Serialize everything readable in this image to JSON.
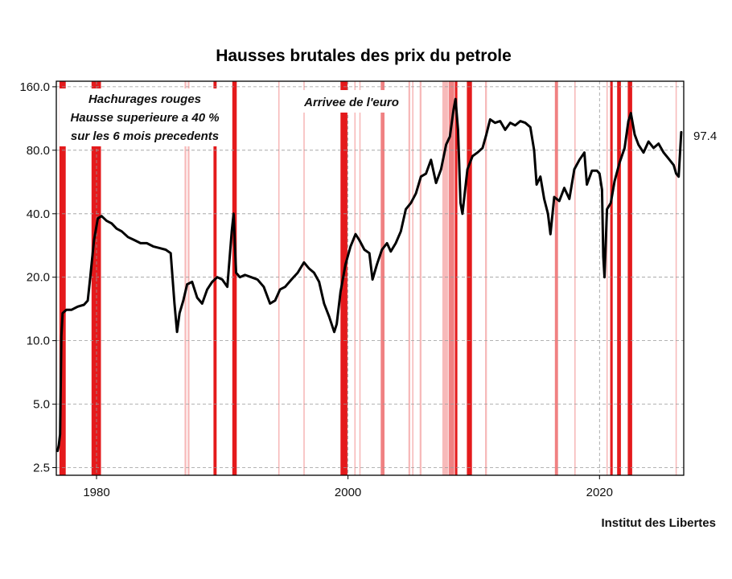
{
  "chart_data": {
    "type": "line",
    "title": "Hausses brutales des prix du petrole",
    "xlabel": "",
    "ylabel": "",
    "y_scale": "log",
    "ylim": [
      2.3,
      170
    ],
    "xlim": [
      1976.8,
      2026.7
    ],
    "grid": true,
    "x_ticks": [
      1980,
      2000,
      2020
    ],
    "x_tick_labels": [
      "1980",
      "2000",
      "2020"
    ],
    "y_ticks": [
      2.5,
      5.0,
      10.0,
      20.0,
      40.0,
      80.0,
      160.0
    ],
    "y_tick_labels": [
      "2.5",
      "5.0",
      "10.0",
      "20.0",
      "40.0",
      "80.0",
      "160.0"
    ],
    "line_color": "#000000",
    "shade_color": "#e41a1c",
    "end_label": "97.4",
    "annotations": {
      "shading_note": [
        "Hachurages rouges",
        "Hausse superieure a 40 %",
        "sur les 6 mois precedents"
      ],
      "euro_note": "Arrivee de l'euro"
    },
    "credit": "Institut des Libertes",
    "shaded_periods": [
      {
        "start": 1977.05,
        "end": 1977.55,
        "strength": "strong"
      },
      {
        "start": 1979.6,
        "end": 1980.35,
        "strength": "strong"
      },
      {
        "start": 1987.0,
        "end": 1987.15,
        "strength": "light"
      },
      {
        "start": 1987.25,
        "end": 1987.4,
        "strength": "light"
      },
      {
        "start": 1989.3,
        "end": 1989.55,
        "strength": "strong"
      },
      {
        "start": 1990.8,
        "end": 1991.15,
        "strength": "strong"
      },
      {
        "start": 1994.45,
        "end": 1994.55,
        "strength": "light"
      },
      {
        "start": 1996.45,
        "end": 1996.55,
        "strength": "light"
      },
      {
        "start": 1999.4,
        "end": 1999.95,
        "strength": "strong"
      },
      {
        "start": 2000.5,
        "end": 2000.6,
        "strength": "light"
      },
      {
        "start": 2000.9,
        "end": 2001.0,
        "strength": "light"
      },
      {
        "start": 2002.6,
        "end": 2002.9,
        "strength": "medium"
      },
      {
        "start": 2004.8,
        "end": 2004.95,
        "strength": "light"
      },
      {
        "start": 2005.1,
        "end": 2005.2,
        "strength": "light"
      },
      {
        "start": 2005.7,
        "end": 2005.85,
        "strength": "light"
      },
      {
        "start": 2007.5,
        "end": 2007.95,
        "strength": "light"
      },
      {
        "start": 2008.0,
        "end": 2008.45,
        "strength": "medium"
      },
      {
        "start": 2008.5,
        "end": 2008.7,
        "strength": "strong"
      },
      {
        "start": 2009.45,
        "end": 2009.85,
        "strength": "strong"
      },
      {
        "start": 2010.9,
        "end": 2011.05,
        "strength": "light"
      },
      {
        "start": 2016.45,
        "end": 2016.7,
        "strength": "medium"
      },
      {
        "start": 2018.0,
        "end": 2018.1,
        "strength": "light"
      },
      {
        "start": 2020.55,
        "end": 2020.65,
        "strength": "light"
      },
      {
        "start": 2020.85,
        "end": 2021.05,
        "strength": "strong"
      },
      {
        "start": 2021.4,
        "end": 2021.7,
        "strength": "strong"
      },
      {
        "start": 2022.25,
        "end": 2022.6,
        "strength": "strong"
      },
      {
        "start": 2026.05,
        "end": 2026.15,
        "strength": "light"
      }
    ],
    "series": [
      {
        "x": [
          1976.9,
          1977.0,
          1977.1,
          1977.2,
          1977.3,
          1977.6,
          1978.0,
          1978.5,
          1979.0,
          1979.3,
          1979.5,
          1979.8,
          1980.1,
          1980.4,
          1980.8,
          1981.2,
          1981.6,
          1982.0,
          1982.5,
          1983.0,
          1983.5,
          1984.0,
          1984.5,
          1985.0,
          1985.5,
          1985.9,
          1986.2,
          1986.4,
          1986.6,
          1986.9,
          1987.2,
          1987.6,
          1988.0,
          1988.4,
          1988.8,
          1989.2,
          1989.6,
          1990.0,
          1990.4,
          1990.75,
          1990.9,
          1991.1,
          1991.4,
          1991.8,
          1992.3,
          1992.8,
          1993.3,
          1993.8,
          1994.2,
          1994.6,
          1995.0,
          1995.5,
          1996.0,
          1996.5,
          1996.9,
          1997.3,
          1997.7,
          1998.1,
          1998.5,
          1998.9,
          1999.1,
          1999.4,
          1999.8,
          2000.2,
          2000.6,
          2000.9,
          2001.3,
          2001.7,
          2001.95,
          2002.3,
          2002.7,
          2003.1,
          2003.4,
          2003.8,
          2004.2,
          2004.6,
          2005.0,
          2005.4,
          2005.8,
          2006.2,
          2006.6,
          2007.0,
          2007.4,
          2007.8,
          2008.1,
          2008.4,
          2008.55,
          2008.75,
          2008.95,
          2009.1,
          2009.5,
          2009.9,
          2010.3,
          2010.7,
          2011.0,
          2011.3,
          2011.7,
          2012.1,
          2012.5,
          2012.9,
          2013.3,
          2013.7,
          2014.1,
          2014.5,
          2014.8,
          2015.0,
          2015.3,
          2015.6,
          2015.9,
          2016.1,
          2016.4,
          2016.8,
          2017.2,
          2017.6,
          2018.0,
          2018.4,
          2018.8,
          2019.0,
          2019.4,
          2019.8,
          2020.0,
          2020.2,
          2020.3,
          2020.4,
          2020.6,
          2020.9,
          2021.2,
          2021.6,
          2022.0,
          2022.3,
          2022.5,
          2022.8,
          2023.1,
          2023.5,
          2023.9,
          2024.3,
          2024.7,
          2025.1,
          2025.5,
          2025.9,
          2026.1,
          2026.3,
          2026.5
        ],
        "y": [
          3.0,
          3.2,
          3.6,
          10.5,
          13.5,
          14.0,
          14.0,
          14.5,
          14.8,
          15.5,
          20.0,
          30.0,
          38.0,
          39.0,
          37.0,
          36.0,
          34.0,
          33.0,
          31.0,
          30.0,
          29.0,
          29.0,
          28.0,
          27.5,
          27.0,
          26.0,
          15.0,
          11.0,
          13.5,
          15.5,
          18.5,
          19.0,
          16.0,
          15.0,
          17.5,
          19.0,
          20.0,
          19.5,
          18.0,
          33.0,
          40.0,
          21.0,
          20.0,
          20.5,
          20.0,
          19.5,
          18.0,
          15.0,
          15.5,
          17.5,
          18.0,
          19.5,
          21.0,
          23.5,
          22.0,
          21.0,
          19.0,
          15.0,
          13.0,
          11.0,
          12.0,
          17.0,
          23.0,
          28.0,
          32.0,
          30.0,
          27.0,
          26.0,
          19.5,
          23.0,
          27.0,
          29.0,
          26.5,
          29.0,
          33.0,
          42.0,
          45.0,
          50.0,
          60.0,
          62.0,
          72.0,
          56.0,
          65.0,
          85.0,
          93.0,
          125.0,
          140.0,
          100.0,
          45.0,
          40.0,
          65.0,
          75.0,
          78.0,
          82.0,
          95.0,
          112.0,
          108.0,
          110.0,
          100.0,
          108.0,
          105.0,
          110.0,
          108.0,
          103.0,
          80.0,
          55.0,
          60.0,
          47.0,
          40.0,
          32.0,
          48.0,
          46.0,
          53.0,
          47.0,
          65.0,
          72.0,
          78.0,
          55.0,
          64.0,
          64.0,
          62.0,
          52.0,
          25.0,
          20.0,
          42.0,
          45.0,
          57.0,
          70.0,
          82.0,
          110.0,
          120.0,
          95.0,
          85.0,
          78.0,
          88.0,
          82.0,
          86.0,
          78.0,
          73.0,
          68.0,
          62.0,
          60.0,
          97.4
        ]
      }
    ]
  }
}
